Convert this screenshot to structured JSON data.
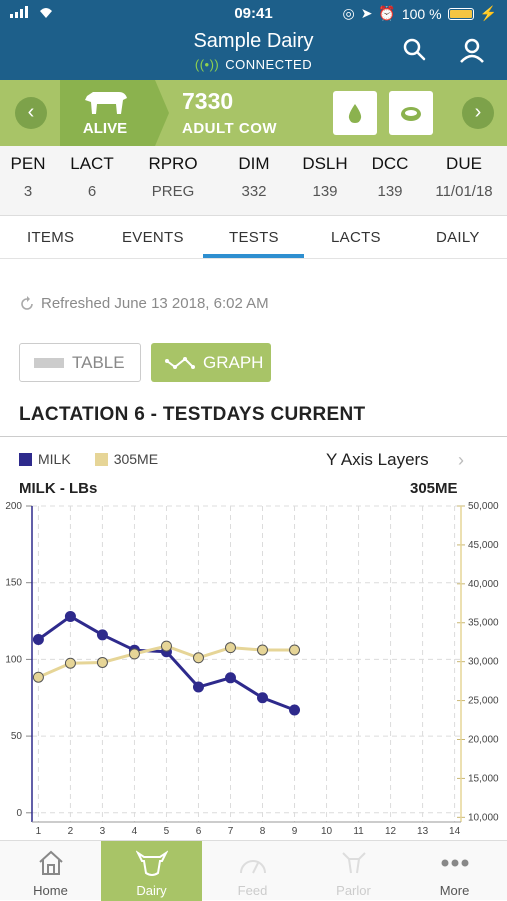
{
  "status_bar": {
    "time": "09:41",
    "battery": "100 %"
  },
  "header": {
    "title": "Sample Dairy",
    "connection": "CONNECTED"
  },
  "animal": {
    "status": "ALIVE",
    "number": "7330",
    "type": "ADULT COW"
  },
  "stats": [
    {
      "label": "PEN",
      "value": "3"
    },
    {
      "label": "LACT",
      "value": "6"
    },
    {
      "label": "RPRO",
      "value": "PREG"
    },
    {
      "label": "DIM",
      "value": "332"
    },
    {
      "label": "DSLH",
      "value": "139"
    },
    {
      "label": "DCC",
      "value": "139"
    },
    {
      "label": "DUE",
      "value": "11/01/18"
    }
  ],
  "tabs": [
    "ITEMS",
    "EVENTS",
    "TESTS",
    "LACTS",
    "DAILY"
  ],
  "active_tab": "TESTS",
  "refreshed": "Refreshed June 13 2018, 6:02 AM",
  "view_toggle": {
    "table_label": "TABLE",
    "graph_label": "GRAPH"
  },
  "section_title": "LACTATION 6 - TESTDAYS CURRENT",
  "y_axis_layers": "Y Axis Layers",
  "colors": {
    "header": "#1d5f8a",
    "green": "#a8c467",
    "milk": "#2e2a8c",
    "me305": "#e6d597",
    "accent": "#2e8fd0"
  },
  "chart_data": {
    "type": "line",
    "legend": [
      "MILK",
      "305ME"
    ],
    "ylabel_left": "MILK - LBs",
    "ylabel_right": "305ME",
    "x_ticks": [
      "1",
      "2",
      "3",
      "4",
      "5",
      "6",
      "7",
      "8",
      "9",
      "10",
      "11",
      "12",
      "13",
      "14"
    ],
    "y_left_ticks": [
      "0",
      "50",
      "100",
      "150",
      "200"
    ],
    "y_right_ticks": [
      "10,000",
      "15,000",
      "20,000",
      "25,000",
      "30,000",
      "35,000",
      "40,000",
      "45,000",
      "50,000"
    ],
    "xlim": [
      0.8,
      14.2
    ],
    "ylim_left": [
      -6,
      200
    ],
    "ylim_right": [
      9400,
      50000
    ],
    "grid": true,
    "series": [
      {
        "name": "MILK",
        "axis": "left",
        "x": [
          1,
          2,
          3,
          4,
          5,
          6,
          7,
          8,
          9
        ],
        "y": [
          113,
          128,
          116,
          106,
          105,
          82,
          88,
          75,
          67
        ]
      },
      {
        "name": "305ME",
        "axis": "right",
        "x": [
          1,
          2,
          3,
          4,
          5,
          6,
          7,
          8,
          9
        ],
        "y": [
          28000,
          29800,
          29900,
          31000,
          32000,
          30500,
          31800,
          31500,
          31500
        ]
      }
    ]
  },
  "nav": [
    {
      "label": "Home",
      "icon": "home-icon"
    },
    {
      "label": "Dairy",
      "icon": "cow-icon"
    },
    {
      "label": "Feed",
      "icon": "feed-icon"
    },
    {
      "label": "Parlor",
      "icon": "parlor-icon"
    },
    {
      "label": "More",
      "icon": "more-icon"
    }
  ]
}
